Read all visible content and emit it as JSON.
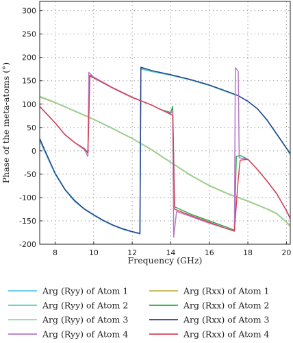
{
  "chart_data": {
    "type": "line",
    "xlabel": "Frequency (GHz)",
    "ylabel": "Phase of the meta-atoms (°)",
    "xlim": [
      7.2,
      20.2
    ],
    "ylim": [
      -200,
      320
    ],
    "xticks": [
      8,
      10,
      12,
      14,
      16,
      18,
      20
    ],
    "yticks": [
      -200,
      -150,
      -100,
      -50,
      0,
      50,
      100,
      150,
      200,
      250,
      300
    ],
    "grid": "dotted",
    "legend_position": "bottom",
    "series": [
      {
        "name": "Arg (Ryy) of Atom 1",
        "color": "#5bc8e8",
        "points": [
          [
            7.2,
            22
          ],
          [
            7.5,
            -5
          ],
          [
            8.0,
            -50
          ],
          [
            8.5,
            -83
          ],
          [
            9.0,
            -108
          ],
          [
            9.5,
            -125
          ],
          [
            10.0,
            -138
          ],
          [
            10.5,
            -150
          ],
          [
            11.0,
            -160
          ],
          [
            11.5,
            -168
          ],
          [
            12.0,
            -174
          ],
          [
            12.4,
            -178
          ],
          [
            12.45,
            175
          ],
          [
            13.0,
            170
          ],
          [
            14.0,
            162
          ],
          [
            15.0,
            152
          ],
          [
            16.0,
            140
          ],
          [
            17.0,
            125
          ],
          [
            17.5,
            118
          ],
          [
            18.0,
            106
          ],
          [
            18.5,
            90
          ],
          [
            19.0,
            65
          ],
          [
            19.5,
            35
          ],
          [
            20.0,
            5
          ],
          [
            20.2,
            -8
          ]
        ]
      },
      {
        "name": "Arg (Rxx) of Atom 1",
        "color": "#c8b24a",
        "points": [
          [
            7.2,
            115
          ],
          [
            8.0,
            103
          ],
          [
            9.0,
            85
          ],
          [
            10.0,
            67
          ],
          [
            11.0,
            47
          ],
          [
            12.0,
            26
          ],
          [
            13.0,
            2
          ],
          [
            14.0,
            -25
          ],
          [
            15.0,
            -52
          ],
          [
            16.0,
            -75
          ],
          [
            17.0,
            -93
          ],
          [
            18.0,
            -108
          ],
          [
            19.0,
            -125
          ],
          [
            19.5,
            -135
          ],
          [
            20.0,
            -153
          ],
          [
            20.2,
            -162
          ]
        ]
      },
      {
        "name": "Arg (Ryy) of Atom 2",
        "color": "#4fd2b8",
        "points": [
          [
            7.2,
            26
          ],
          [
            7.5,
            -2
          ],
          [
            8.0,
            -48
          ],
          [
            8.5,
            -82
          ],
          [
            9.0,
            -106
          ],
          [
            9.5,
            -124
          ],
          [
            10.0,
            -137
          ],
          [
            10.5,
            -149
          ],
          [
            11.0,
            -159
          ],
          [
            11.5,
            -167
          ],
          [
            12.0,
            -173
          ],
          [
            12.4,
            -177
          ],
          [
            12.45,
            176
          ],
          [
            13.0,
            170
          ],
          [
            14.0,
            162
          ],
          [
            15.0,
            152
          ],
          [
            16.0,
            140
          ],
          [
            17.0,
            125
          ],
          [
            17.5,
            118
          ],
          [
            18.0,
            106
          ],
          [
            18.5,
            90
          ],
          [
            19.0,
            65
          ],
          [
            19.5,
            35
          ],
          [
            20.0,
            5
          ],
          [
            20.2,
            -8
          ]
        ]
      },
      {
        "name": "Arg (Rxx) of Atom 2",
        "color": "#2eaa48",
        "points": [
          [
            7.2,
            95
          ],
          [
            8.0,
            60
          ],
          [
            8.5,
            35
          ],
          [
            9.0,
            18
          ],
          [
            9.5,
            5
          ],
          [
            9.7,
            -3
          ],
          [
            9.8,
            162
          ],
          [
            10.0,
            158
          ],
          [
            11.0,
            135
          ],
          [
            12.0,
            115
          ],
          [
            13.0,
            98
          ],
          [
            13.5,
            88
          ],
          [
            14.0,
            82
          ],
          [
            14.1,
            95
          ],
          [
            14.2,
            -120
          ],
          [
            15.0,
            -135
          ],
          [
            16.0,
            -150
          ],
          [
            17.0,
            -165
          ],
          [
            17.3,
            -170
          ],
          [
            17.4,
            -12
          ],
          [
            17.6,
            -10
          ],
          [
            18.0,
            -18
          ],
          [
            18.5,
            -40
          ],
          [
            19.0,
            -65
          ],
          [
            19.5,
            -92
          ],
          [
            20.0,
            -128
          ],
          [
            20.2,
            -145
          ]
        ]
      },
      {
        "name": "Arg (Ryy) of Atom 3",
        "color": "#8fd8a8",
        "points": [
          [
            7.2,
            117
          ],
          [
            8.0,
            104
          ],
          [
            9.0,
            86
          ],
          [
            10.0,
            68
          ],
          [
            11.0,
            48
          ],
          [
            12.0,
            27
          ],
          [
            13.0,
            3
          ],
          [
            14.0,
            -24
          ],
          [
            15.0,
            -51
          ],
          [
            16.0,
            -74
          ],
          [
            17.0,
            -92
          ],
          [
            18.0,
            -107
          ],
          [
            19.0,
            -124
          ],
          [
            19.5,
            -134
          ],
          [
            20.0,
            -152
          ],
          [
            20.2,
            -160
          ]
        ]
      },
      {
        "name": "Arg (Rxx) of Atom 3",
        "color": "#2b3f8c",
        "points": [
          [
            7.2,
            26
          ],
          [
            7.5,
            -2
          ],
          [
            8.0,
            -48
          ],
          [
            8.5,
            -82
          ],
          [
            9.0,
            -106
          ],
          [
            9.5,
            -124
          ],
          [
            10.0,
            -137
          ],
          [
            10.5,
            -149
          ],
          [
            11.0,
            -159
          ],
          [
            11.5,
            -167
          ],
          [
            12.0,
            -173
          ],
          [
            12.4,
            -177
          ],
          [
            12.45,
            179
          ],
          [
            13.0,
            172
          ],
          [
            14.0,
            163
          ],
          [
            15.0,
            153
          ],
          [
            16.0,
            141
          ],
          [
            17.0,
            126
          ],
          [
            17.5,
            118
          ],
          [
            18.0,
            106
          ],
          [
            18.5,
            90
          ],
          [
            19.0,
            66
          ],
          [
            19.5,
            36
          ],
          [
            20.0,
            6
          ],
          [
            20.2,
            -6
          ]
        ]
      },
      {
        "name": "Arg (Ryy) of Atom 4",
        "color": "#b877c9",
        "points": [
          [
            7.2,
            95
          ],
          [
            8.0,
            60
          ],
          [
            8.5,
            35
          ],
          [
            9.0,
            18
          ],
          [
            9.5,
            3
          ],
          [
            9.7,
            -12
          ],
          [
            9.75,
            168
          ],
          [
            10.0,
            158
          ],
          [
            11.0,
            135
          ],
          [
            12.0,
            115
          ],
          [
            13.0,
            98
          ],
          [
            13.5,
            88
          ],
          [
            14.0,
            80
          ],
          [
            14.1,
            85
          ],
          [
            14.15,
            -185
          ],
          [
            14.3,
            -130
          ],
          [
            15.0,
            -140
          ],
          [
            16.0,
            -155
          ],
          [
            17.0,
            -168
          ],
          [
            17.3,
            -172
          ],
          [
            17.35,
            178
          ],
          [
            17.5,
            170
          ],
          [
            17.55,
            -15
          ],
          [
            18.0,
            -18
          ],
          [
            18.5,
            -40
          ],
          [
            19.0,
            -65
          ],
          [
            19.5,
            -92
          ],
          [
            20.0,
            -128
          ],
          [
            20.2,
            -145
          ]
        ]
      },
      {
        "name": "Arg (Rxx) of Atom 4",
        "color": "#d8435a",
        "points": [
          [
            7.2,
            95
          ],
          [
            8.0,
            60
          ],
          [
            8.5,
            35
          ],
          [
            9.0,
            18
          ],
          [
            9.5,
            5
          ],
          [
            9.7,
            -5
          ],
          [
            9.8,
            160
          ],
          [
            10.0,
            156
          ],
          [
            11.0,
            134
          ],
          [
            12.0,
            114
          ],
          [
            13.0,
            98
          ],
          [
            13.5,
            88
          ],
          [
            14.0,
            78
          ],
          [
            14.1,
            76
          ],
          [
            14.2,
            -125
          ],
          [
            15.0,
            -138
          ],
          [
            16.0,
            -153
          ],
          [
            17.0,
            -168
          ],
          [
            17.3,
            -172
          ],
          [
            17.5,
            -60
          ],
          [
            17.6,
            -20
          ],
          [
            18.0,
            -18
          ],
          [
            18.5,
            -40
          ],
          [
            19.0,
            -65
          ],
          [
            19.5,
            -92
          ],
          [
            20.0,
            -128
          ],
          [
            20.2,
            -145
          ]
        ]
      }
    ]
  }
}
